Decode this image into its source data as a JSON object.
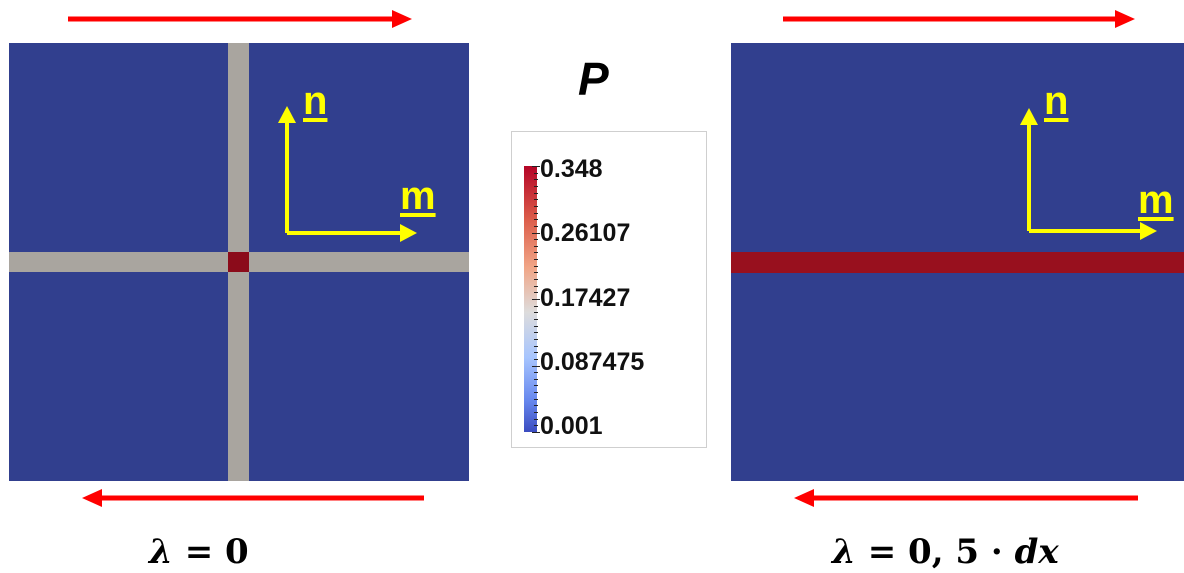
{
  "colors": {
    "panel_background": "#313f8e",
    "crack_band_left": "#a9a59f",
    "crack_band_right": "#98101e",
    "intersection": "#8b0b1a",
    "arrow_red": "#ff0000",
    "axis_yellow": "#ffff00"
  },
  "left_panel": {
    "axis_labels": {
      "normal": "n",
      "tangent": "m"
    },
    "caption": {
      "symbol": "λ",
      "equals": "=",
      "value": "0"
    }
  },
  "right_panel": {
    "axis_labels": {
      "normal": "n",
      "tangent": "m"
    },
    "caption": {
      "symbol": "λ",
      "equals": "=",
      "value": "0, 5",
      "dot": "·",
      "unit": "dx"
    }
  },
  "colorbar": {
    "title": "P",
    "colormap": "coolwarm",
    "range": [
      0.001,
      0.348
    ],
    "labels": [
      "0.348",
      "0.26107",
      "0.17427",
      "0.087475",
      "0.001"
    ]
  },
  "icons": {
    "top_arrows": "arrow-right-icon",
    "bottom_arrows": "arrow-left-icon",
    "axes": "axis-arrows-icon"
  }
}
